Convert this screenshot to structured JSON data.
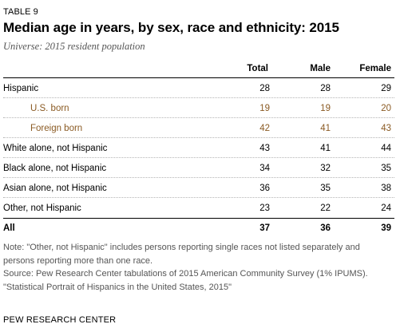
{
  "table_label": "TABLE 9",
  "title": "Median age in years, by sex, race and ethnicity: 2015",
  "subtitle": "Universe: 2015 resident population",
  "columns": [
    "Total",
    "Male",
    "Female"
  ],
  "rows": [
    {
      "label": "Hispanic",
      "total": "28",
      "male": "28",
      "female": "29"
    },
    {
      "label": "U.S. born",
      "total": "19",
      "male": "19",
      "female": "20"
    },
    {
      "label": "Foreign born",
      "total": "42",
      "male": "41",
      "female": "43"
    },
    {
      "label": "White alone, not Hispanic",
      "total": "43",
      "male": "41",
      "female": "44"
    },
    {
      "label": "Black alone, not Hispanic",
      "total": "34",
      "male": "32",
      "female": "35"
    },
    {
      "label": "Asian alone, not Hispanic",
      "total": "36",
      "male": "35",
      "female": "38"
    },
    {
      "label": "Other, not Hispanic",
      "total": "23",
      "male": "22",
      "female": "24"
    }
  ],
  "total_row": {
    "label": "All",
    "total": "37",
    "male": "36",
    "female": "39"
  },
  "notes": {
    "note": "Note: \"Other, not Hispanic\" includes persons reporting single races not listed separately and persons reporting more than one race.",
    "source": "Source: Pew Research Center tabulations of 2015 American Community Survey (1% IPUMS).",
    "report": "\"Statistical Portrait of Hispanics in the United States, 2015\""
  },
  "credit": "PEW RESEARCH CENTER",
  "colors": {
    "subgroup_text": "#8a5a23",
    "note_text": "#555555",
    "rule": "#000000"
  }
}
